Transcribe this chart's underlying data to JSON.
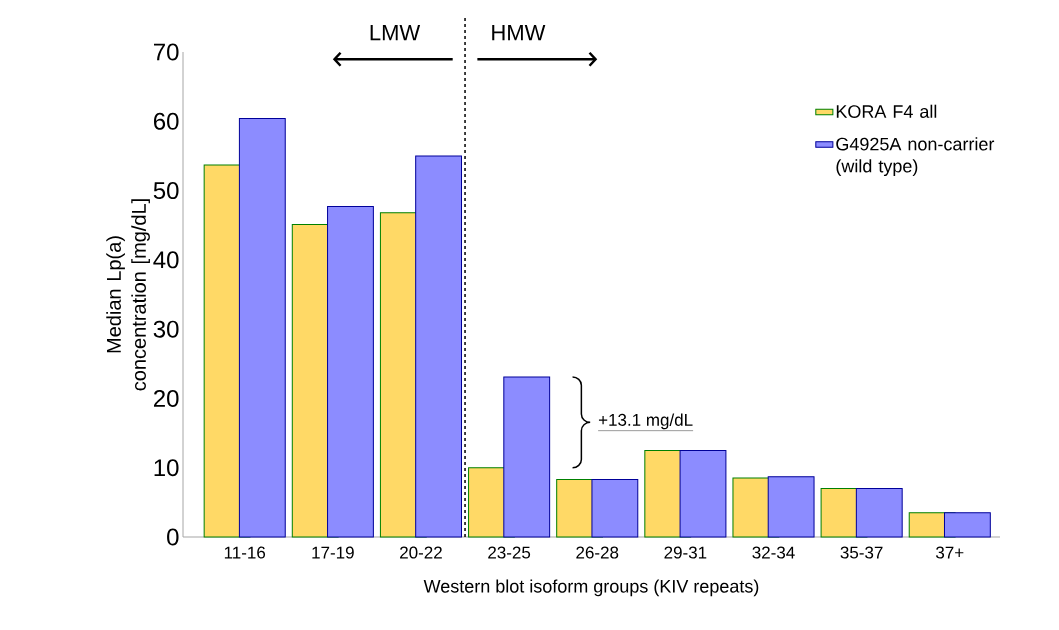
{
  "chart_data": {
    "type": "bar",
    "xlabel": "Western blot isoform groups (KIV repeats)",
    "ylabel": "Median Lp(a) concentration [mg/dL]",
    "categories": [
      "11-16",
      "17-19",
      "20-22",
      "23-25",
      "26-28",
      "29-31",
      "32-34",
      "35-37",
      "37+"
    ],
    "series": [
      {
        "name": "KORA F4 all",
        "color": "#ffd966",
        "values": [
          53.7,
          45.1,
          46.8,
          10.0,
          8.3,
          12.5,
          8.5,
          7.0,
          3.5
        ]
      },
      {
        "name": "G4925A non-carrier (wild type)",
        "color": "#8c8cff",
        "values": [
          60.4,
          47.7,
          55.0,
          23.1,
          8.3,
          12.5,
          8.7,
          7.0,
          3.5
        ]
      }
    ],
    "ylim": [
      0,
      70
    ],
    "yticks": [
      0,
      10,
      20,
      30,
      40,
      50,
      60,
      70
    ],
    "grid": false,
    "legend": "top right",
    "annotations": [
      "LMW",
      "HMW",
      "+13.1 mg/dL"
    ]
  }
}
